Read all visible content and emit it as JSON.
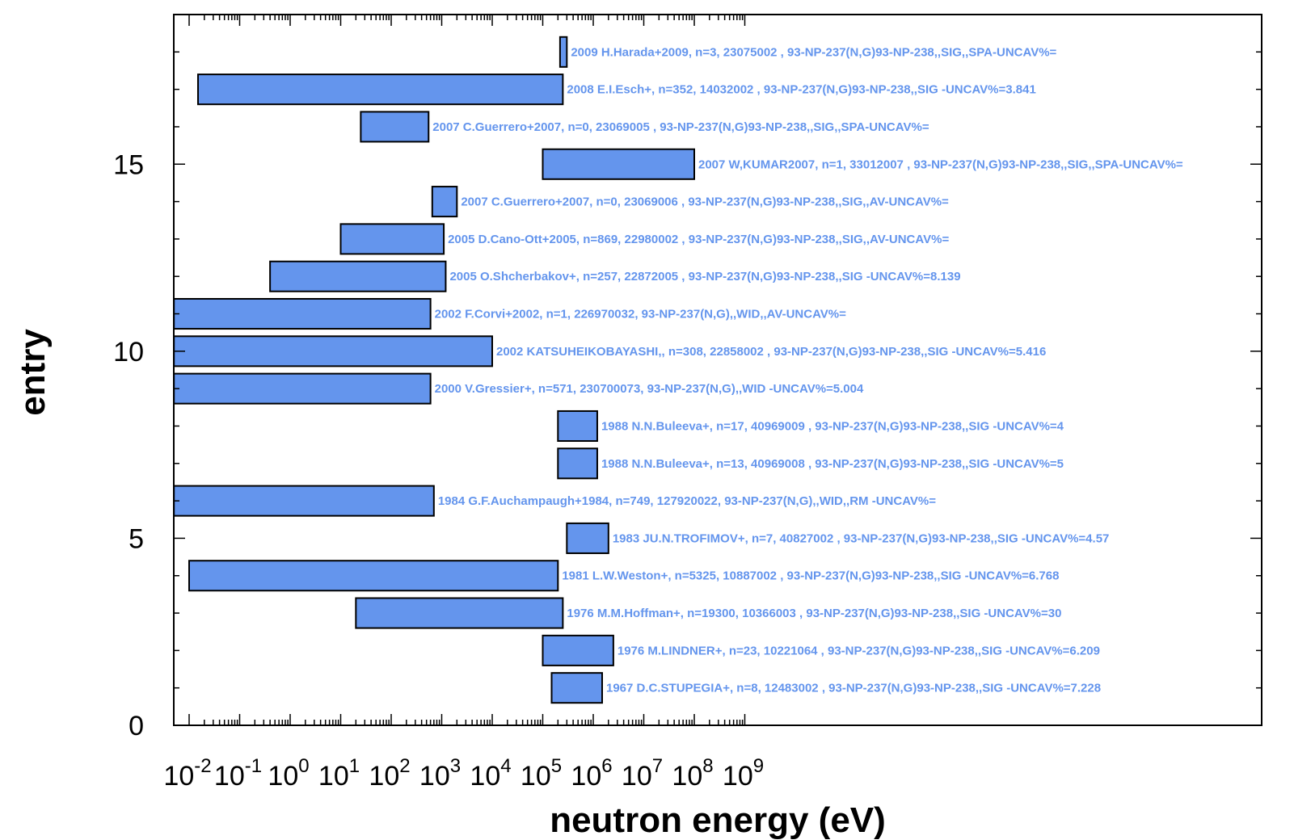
{
  "chart_data": {
    "type": "bar",
    "orientation": "horizontal-range",
    "title": "",
    "xlabel": "neutron energy (eV)",
    "ylabel": "entry",
    "x_scale": "log",
    "x_tick_labels": [
      "10^-2",
      "10^-1",
      "10^0",
      "10^1",
      "10^2",
      "10^3",
      "10^4",
      "10^5",
      "10^6",
      "10^7",
      "10^8",
      "10^9"
    ],
    "x_tick_values": [
      0.01,
      0.1,
      1,
      10,
      100,
      1000,
      10000,
      100000,
      1000000,
      10000000,
      100000000,
      1000000000
    ],
    "xlim": [
      0.005,
      1e+20
    ],
    "y_tick_labels": [
      "0",
      "5",
      "10",
      "15"
    ],
    "y_tick_values": [
      0,
      5,
      10,
      15
    ],
    "ylim": [
      0,
      19
    ],
    "bar_color": "#6495ed",
    "entries": [
      {
        "entry": 1,
        "x_start": 150000,
        "x_end": 1500000,
        "label": "1967  D.C.STUPEGIA+, n=8, 12483002 , 93-NP-237(N,G)93-NP-238,,SIG -UNCAV%=7.228"
      },
      {
        "entry": 2,
        "x_start": 100000,
        "x_end": 2500000,
        "label": "1976  M.LINDNER+, n=23, 10221064 , 93-NP-237(N,G)93-NP-238,,SIG -UNCAV%=6.209"
      },
      {
        "entry": 3,
        "x_start": 20,
        "x_end": 250000,
        "label": "1976  M.M.Hoffman+, n=19300, 10366003 , 93-NP-237(N,G)93-NP-238,,SIG -UNCAV%=30"
      },
      {
        "entry": 4,
        "x_start": 0.01,
        "x_end": 200000,
        "label": "1981  L.W.Weston+, n=5325, 10887002 , 93-NP-237(N,G)93-NP-238,,SIG -UNCAV%=6.768"
      },
      {
        "entry": 5,
        "x_start": 300000,
        "x_end": 2000000,
        "label": "1983  JU.N.TROFIMOV+, n=7, 40827002 , 93-NP-237(N,G)93-NP-238,,SIG -UNCAV%=4.57"
      },
      {
        "entry": 6,
        "x_start": 0.005,
        "x_end": 700,
        "label": "1984  G.F.Auchampaugh+1984, n=749, 127920022, 93-NP-237(N,G),,WID,,RM -UNCAV%="
      },
      {
        "entry": 7,
        "x_start": 200000,
        "x_end": 1200000,
        "label": "1988  N.N.Buleeva+, n=13, 40969008 , 93-NP-237(N,G)93-NP-238,,SIG -UNCAV%=5"
      },
      {
        "entry": 8,
        "x_start": 200000,
        "x_end": 1200000,
        "label": "1988  N.N.Buleeva+, n=17, 40969009 , 93-NP-237(N,G)93-NP-238,,SIG -UNCAV%=4"
      },
      {
        "entry": 9,
        "x_start": 0.005,
        "x_end": 600,
        "label": "2000  V.Gressier+, n=571, 230700073, 93-NP-237(N,G),,WID -UNCAV%=5.004"
      },
      {
        "entry": 10,
        "x_start": 0.005,
        "x_end": 10000,
        "label": "2002  KATSUHEIKOBAYASHI,, n=308, 22858002 , 93-NP-237(N,G)93-NP-238,,SIG -UNCAV%=5.416"
      },
      {
        "entry": 11,
        "x_start": 0.005,
        "x_end": 600,
        "label": "2002  F.Corvi+2002, n=1, 226970032, 93-NP-237(N,G),,WID,,AV-UNCAV%="
      },
      {
        "entry": 12,
        "x_start": 0.4,
        "x_end": 1200,
        "label": "2005  O.Shcherbakov+, n=257, 22872005 , 93-NP-237(N,G)93-NP-238,,SIG -UNCAV%=8.139"
      },
      {
        "entry": 13,
        "x_start": 10,
        "x_end": 1100,
        "label": "2005  D.Cano-Ott+2005, n=869, 22980002 , 93-NP-237(N,G)93-NP-238,,SIG,,AV-UNCAV%="
      },
      {
        "entry": 14,
        "x_start": 650,
        "x_end": 2000,
        "label": "2007  C.Guerrero+2007, n=0, 23069006 , 93-NP-237(N,G)93-NP-238,,SIG,,AV-UNCAV%="
      },
      {
        "entry": 15,
        "x_start": 100000,
        "x_end": 100000000,
        "label": "2007  W,KUMAR2007, n=1, 33012007 , 93-NP-237(N,G)93-NP-238,,SIG,,SPA-UNCAV%="
      },
      {
        "entry": 16,
        "x_start": 25,
        "x_end": 550,
        "label": "2007  C.Guerrero+2007, n=0, 23069005 , 93-NP-237(N,G)93-NP-238,,SIG,,SPA-UNCAV%="
      },
      {
        "entry": 17,
        "x_start": 0.015,
        "x_end": 250000,
        "label": "2008  E.I.Esch+, n=352, 14032002 , 93-NP-237(N,G)93-NP-238,,SIG -UNCAV%=3.841"
      },
      {
        "entry": 18,
        "x_start": 220000,
        "x_end": 300000,
        "label": "2009  H.Harada+2009, n=3, 23075002 , 93-NP-237(N,G)93-NP-238,,SIG,,SPA-UNCAV%="
      }
    ]
  }
}
